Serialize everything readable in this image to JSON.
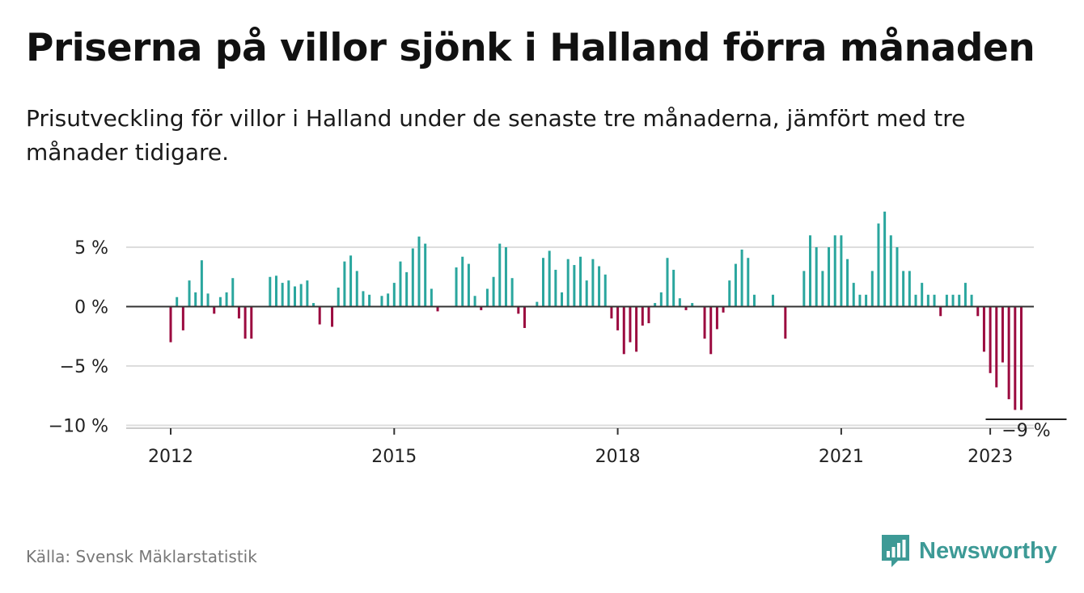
{
  "header": {
    "title": "Priserna på villor sjönk i Halland förra månaden",
    "subtitle": "Prisutveckling för villor i Halland under de senaste tre månaderna, jämfört med tre månader tidigare."
  },
  "footer": {
    "source": "Källa: Svensk Mäklarstatistik",
    "brand": "Newsworthy"
  },
  "colors": {
    "positive": "#2aa69e",
    "negative": "#9b0a3f",
    "brand": "#3d9a96"
  },
  "chart_data": {
    "type": "bar",
    "title": "Priserna på villor sjönk i Halland förra månaden",
    "subtitle": "Prisutveckling för villor i Halland under de senaste tre månaderna, jämfört med tre månader tidigare.",
    "x_start": "2012-01",
    "x_ticks": [
      {
        "month": "2012-01",
        "label": "2012"
      },
      {
        "month": "2015-01",
        "label": "2015"
      },
      {
        "month": "2018-01",
        "label": "2018"
      },
      {
        "month": "2021-01",
        "label": "2021"
      },
      {
        "month": "2023-01",
        "label": "2023"
      }
    ],
    "y_ticks": [
      {
        "value": 5,
        "label": "5 %"
      },
      {
        "value": 0,
        "label": "0 %"
      },
      {
        "value": -5,
        "label": "−5 %"
      },
      {
        "value": -10,
        "label": "−10 %"
      }
    ],
    "ylim": [
      -10,
      8.5
    ],
    "grid": true,
    "unit": "%",
    "annotation": {
      "label": "−9 %",
      "value": -9
    },
    "values": [
      -3,
      0.8,
      -2,
      2.2,
      1.2,
      3.9,
      1.1,
      -0.6,
      0.8,
      1.2,
      2.4,
      -1,
      -2.7,
      -2.7,
      0,
      0,
      2.5,
      2.6,
      2,
      2.2,
      1.7,
      1.9,
      2.2,
      0.3,
      -1.5,
      0,
      -1.7,
      1.6,
      3.8,
      4.3,
      3,
      1.3,
      1,
      0,
      0.9,
      1.1,
      2,
      3.8,
      2.9,
      4.9,
      5.9,
      5.3,
      1.5,
      -0.4,
      0,
      0,
      3.3,
      4.2,
      3.6,
      0.9,
      -0.3,
      1.5,
      2.5,
      5.3,
      5,
      2.4,
      -0.6,
      -1.8,
      0,
      0.4,
      4.1,
      4.7,
      3.1,
      1.2,
      4,
      3.5,
      4.2,
      2.2,
      4,
      3.4,
      2.7,
      -1,
      -2,
      -4,
      -3,
      -3.8,
      -1.6,
      -1.4,
      0.3,
      1.2,
      4.1,
      3.1,
      0.7,
      -0.3,
      0.3,
      0,
      -2.7,
      -4,
      -1.9,
      -0.5,
      2.2,
      3.6,
      4.8,
      4.1,
      1,
      0,
      0,
      1,
      0,
      -2.7,
      0,
      0,
      3,
      6,
      5,
      3,
      5,
      6,
      6,
      4,
      2,
      1,
      1,
      3,
      7,
      8,
      6,
      5,
      3,
      3,
      1,
      2,
      1,
      1,
      -0.8,
      1,
      1,
      1,
      2,
      1,
      -0.8,
      -3.8,
      -5.6,
      -6.8,
      -4.7,
      -7.8,
      -8.7,
      -8.7
    ]
  }
}
